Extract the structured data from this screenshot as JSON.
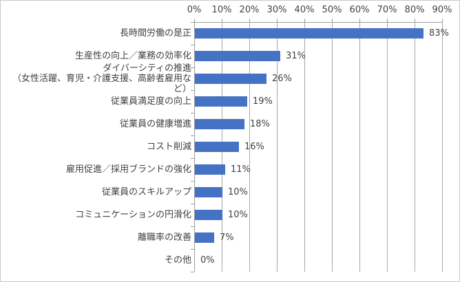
{
  "chart_data": {
    "type": "bar",
    "orientation": "horizontal",
    "title": "",
    "xlabel": "",
    "ylabel": "",
    "x_axis": {
      "position": "top",
      "min": 0,
      "max": 90,
      "step": 10,
      "tick_labels": [
        "0%",
        "10%",
        "20%",
        "30%",
        "40%",
        "50%",
        "60%",
        "70%",
        "80%",
        "90%"
      ]
    },
    "grid": true,
    "legend": false,
    "categories": [
      "長時間労働の是正",
      "生産性の向上／業務の効率化",
      "ダイバーシティの推進\n（女性活躍、育児・介護支援、高齢者雇用など）",
      "従業員満足度の向上",
      "従業員の健康増進",
      "コスト削減",
      "雇用促進／採用ブランドの強化",
      "従業員のスキルアップ",
      "コミュニケーションの円滑化",
      "離職率の改善",
      "その他"
    ],
    "values": [
      83,
      31,
      26,
      19,
      18,
      16,
      11,
      10,
      10,
      7,
      0
    ],
    "value_labels": [
      "83%",
      "31%",
      "26%",
      "19%",
      "18%",
      "16%",
      "11%",
      "10%",
      "10%",
      "7%",
      "0%"
    ],
    "colors": {
      "bar": "#4472c4",
      "gridline": "#a6a6a6",
      "axis": "#9a9a9a",
      "text": "#404040",
      "frame_border": "#c9c9c9",
      "background": "#ffffff"
    }
  }
}
